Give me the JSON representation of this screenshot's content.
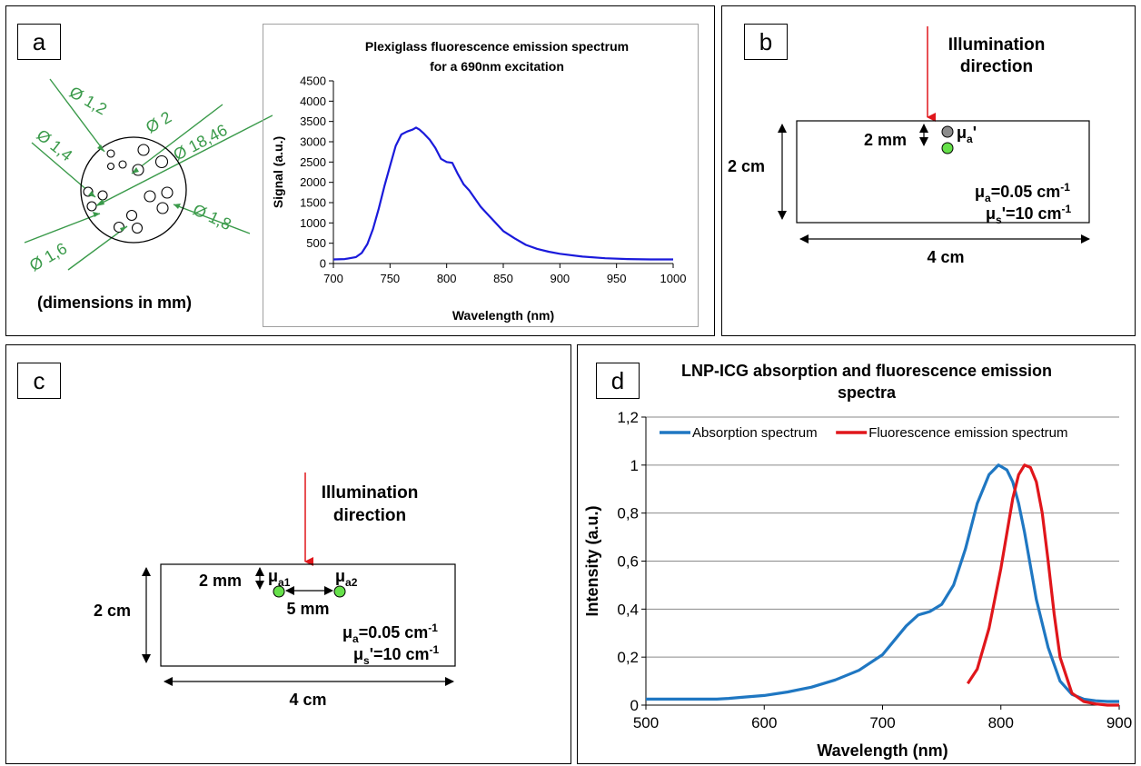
{
  "panels": {
    "a": {
      "label": "a",
      "dimensions_note": "(dimensions in mm)",
      "diameters": [
        "Ø 1,2",
        "Ø 2",
        "Ø 18,46",
        "Ø 1,4",
        "Ø 1,8",
        "Ø 1,6"
      ],
      "colors": {
        "annotation": "#3a9a4a"
      }
    },
    "b": {
      "label": "b",
      "illumination": [
        "Illumination",
        "direction"
      ],
      "depth": "2 mm",
      "height": "2 cm",
      "width": "4 cm",
      "mua_prime": "μa'",
      "mua": "μa=0.05 cm-1",
      "mus": "μs'=10 cm-1",
      "colors": {
        "arrow": "#e0161b",
        "inclusion_gray": "#8c8c8c",
        "inclusion_green": "#66e04a"
      }
    },
    "c": {
      "label": "c",
      "illumination": [
        "Illumination",
        "direction"
      ],
      "depth": "2 mm",
      "separation": "5 mm",
      "height": "2 cm",
      "width": "4 cm",
      "mua1": "μa1",
      "mua2": "μa2",
      "mua": "μa=0.05 cm-1",
      "mus": "μs'=10 cm-1"
    },
    "d": {
      "label": "d"
    }
  },
  "chart_data": [
    {
      "id": "a-chart",
      "type": "line",
      "title": [
        "Plexiglass fluorescence emission spectrum",
        "for a 690nm excitation"
      ],
      "xlabel": "Wavelength (nm)",
      "ylabel": "Signal (a.u.)",
      "xlim": [
        700,
        1000
      ],
      "ylim": [
        0,
        4500
      ],
      "xticks": [
        "700",
        "750",
        "800",
        "850",
        "900",
        "950",
        "1000"
      ],
      "yticks": [
        "0",
        "500",
        "1000",
        "1500",
        "2000",
        "2500",
        "3000",
        "3500",
        "4000",
        "4500"
      ],
      "grid": false,
      "legend": "none",
      "series": [
        {
          "color": "#1a1adb",
          "x": [
            700,
            710,
            720,
            725,
            730,
            735,
            740,
            745,
            750,
            755,
            760,
            765,
            770,
            773,
            776,
            780,
            785,
            790,
            795,
            800,
            805,
            810,
            815,
            820,
            825,
            830,
            835,
            840,
            850,
            860,
            870,
            880,
            890,
            900,
            920,
            940,
            960,
            980,
            1000
          ],
          "y": [
            100,
            110,
            160,
            260,
            480,
            850,
            1350,
            1900,
            2400,
            2900,
            3180,
            3250,
            3300,
            3350,
            3300,
            3200,
            3050,
            2850,
            2580,
            2500,
            2480,
            2200,
            1950,
            1800,
            1600,
            1400,
            1250,
            1100,
            800,
            620,
            460,
            360,
            290,
            240,
            170,
            130,
            110,
            100,
            100
          ]
        }
      ]
    },
    {
      "id": "d-chart",
      "type": "line",
      "title": [
        "LNP-ICG absorption and fluorescence emission",
        "spectra"
      ],
      "xlabel": "Wavelength (nm)",
      "ylabel": "Intensity (a.u.)",
      "xlim": [
        500,
        900
      ],
      "ylim": [
        0,
        1.2
      ],
      "xticks": [
        "500",
        "600",
        "700",
        "800",
        "900"
      ],
      "yticks": [
        "0",
        "0,2",
        "0,4",
        "0,6",
        "0,8",
        "1",
        "1,2"
      ],
      "grid": true,
      "legend": "top",
      "series": [
        {
          "name": "Absorption spectrum",
          "color": "#1f77c2",
          "x": [
            500,
            520,
            540,
            560,
            570,
            580,
            600,
            620,
            640,
            660,
            680,
            700,
            710,
            720,
            730,
            740,
            750,
            760,
            770,
            780,
            790,
            798,
            805,
            810,
            815,
            820,
            825,
            830,
            840,
            850,
            860,
            870,
            880,
            890,
            900
          ],
          "y": [
            0.025,
            0.025,
            0.025,
            0.025,
            0.028,
            0.032,
            0.04,
            0.055,
            0.075,
            0.105,
            0.145,
            0.21,
            0.27,
            0.33,
            0.375,
            0.39,
            0.42,
            0.5,
            0.65,
            0.84,
            0.96,
            1.0,
            0.98,
            0.93,
            0.84,
            0.72,
            0.58,
            0.44,
            0.24,
            0.1,
            0.045,
            0.025,
            0.018,
            0.015,
            0.015
          ]
        },
        {
          "name": "Fluorescence emission spectrum",
          "color": "#e0161b",
          "x": [
            772,
            780,
            790,
            800,
            810,
            815,
            820,
            825,
            830,
            835,
            840,
            845,
            850,
            860,
            870,
            880,
            890,
            900
          ],
          "y": [
            0.09,
            0.15,
            0.32,
            0.57,
            0.86,
            0.96,
            1.0,
            0.99,
            0.93,
            0.8,
            0.6,
            0.38,
            0.2,
            0.05,
            0.015,
            0.005,
            0.0,
            0.0
          ]
        }
      ]
    }
  ]
}
